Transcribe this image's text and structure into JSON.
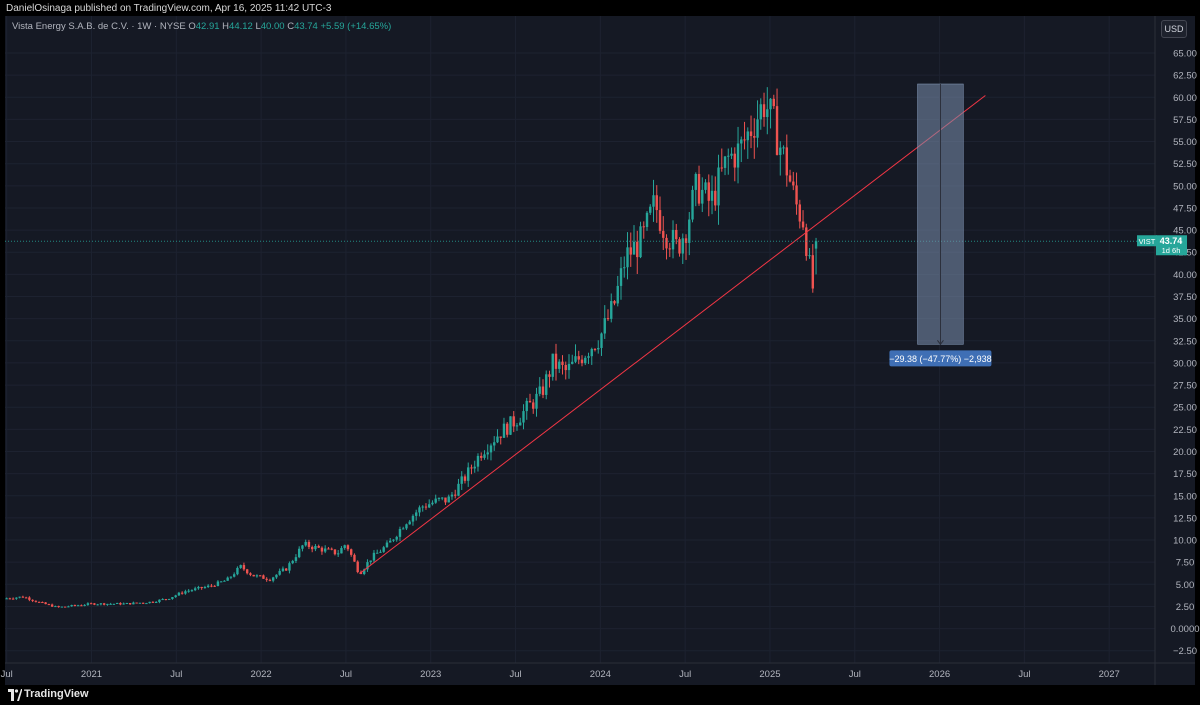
{
  "header": {
    "publish_line": "DanielOsinaga published on TradingView.com, Apr 16, 2025 11:42 UTC-3"
  },
  "legend": {
    "symbol": "Vista Energy S.A.B. de C.V. · 1W · NYSE",
    "o_label": "O",
    "o": "42.91",
    "h_label": "H",
    "h": "44.12",
    "l_label": "L",
    "l": "40.00",
    "c_label": "C",
    "c": "43.74",
    "change": "+5.59 (+14.65%)"
  },
  "currency_button": "USD",
  "price_tag": {
    "symbol": "VIST",
    "price": "43.74",
    "countdown": "1d 6h"
  },
  "measure_label": "−29.38 (−47.77%) −2,938",
  "footer": {
    "brand": "TradingView"
  },
  "colors": {
    "up": "#26a69a",
    "down": "#ef5350",
    "trendline": "#f23645",
    "measure_fill": "#7b8fae",
    "measure_label_bg": "#3f6fb5",
    "background": "#151924"
  },
  "chart_data": {
    "type": "candlestick",
    "timeframe": "1W",
    "y_axis": {
      "ticks": [
        "65.00",
        "62.50",
        "60.00",
        "57.50",
        "55.00",
        "52.50",
        "50.00",
        "47.50",
        "45.00",
        "42.50",
        "40.00",
        "37.50",
        "35.00",
        "32.50",
        "30.00",
        "27.50",
        "25.00",
        "22.50",
        "20.00",
        "17.50",
        "15.00",
        "12.50",
        "10.00",
        "7.50",
        "5.00",
        "2.50",
        "0.0000",
        "−2.50"
      ],
      "range": [
        -2.5,
        65
      ]
    },
    "x_axis": {
      "labels": [
        {
          "t": 2020.5,
          "text": "Jul"
        },
        {
          "t": 2021.0,
          "text": "2021"
        },
        {
          "t": 2021.5,
          "text": "Jul"
        },
        {
          "t": 2022.0,
          "text": "2022"
        },
        {
          "t": 2022.5,
          "text": "Jul"
        },
        {
          "t": 2023.0,
          "text": "2023"
        },
        {
          "t": 2023.5,
          "text": "Jul"
        },
        {
          "t": 2024.0,
          "text": "2024"
        },
        {
          "t": 2024.5,
          "text": "Jul"
        },
        {
          "t": 2025.0,
          "text": "2025"
        },
        {
          "t": 2025.5,
          "text": "Jul"
        },
        {
          "t": 2026.0,
          "text": "2026"
        },
        {
          "t": 2026.5,
          "text": "Jul"
        },
        {
          "t": 2027.0,
          "text": "2027"
        }
      ],
      "range": [
        2020.49,
        2027.27
      ]
    },
    "price_path": [
      [
        2020.49,
        3.4
      ],
      [
        2020.6,
        3.6
      ],
      [
        2020.7,
        2.9
      ],
      [
        2020.8,
        2.4
      ],
      [
        2020.9,
        2.6
      ],
      [
        2021.0,
        2.8
      ],
      [
        2021.2,
        2.8
      ],
      [
        2021.35,
        3.0
      ],
      [
        2021.45,
        3.4
      ],
      [
        2021.55,
        4.2
      ],
      [
        2021.7,
        4.8
      ],
      [
        2021.8,
        5.5
      ],
      [
        2021.88,
        7.0
      ],
      [
        2021.95,
        6.0
      ],
      [
        2022.05,
        5.6
      ],
      [
        2022.15,
        6.8
      ],
      [
        2022.25,
        9.5
      ],
      [
        2022.35,
        9.0
      ],
      [
        2022.45,
        8.5
      ],
      [
        2022.5,
        9.6
      ],
      [
        2022.58,
        6.2
      ],
      [
        2022.65,
        8.0
      ],
      [
        2022.75,
        9.5
      ],
      [
        2022.85,
        12.0
      ],
      [
        2022.95,
        13.8
      ],
      [
        2023.05,
        14.5
      ],
      [
        2023.1,
        14.5
      ],
      [
        2023.2,
        17.0
      ],
      [
        2023.3,
        20.0
      ],
      [
        2023.4,
        22.0
      ],
      [
        2023.5,
        23.5
      ],
      [
        2023.6,
        25.5
      ],
      [
        2023.65,
        26.5
      ],
      [
        2023.72,
        30.0
      ],
      [
        2023.8,
        29.0
      ],
      [
        2023.9,
        31.0
      ],
      [
        2024.0,
        33.0
      ],
      [
        2024.08,
        36.5
      ],
      [
        2024.15,
        42.0
      ],
      [
        2024.25,
        44.0
      ],
      [
        2024.32,
        48.0
      ],
      [
        2024.38,
        45.0
      ],
      [
        2024.45,
        43.0
      ],
      [
        2024.5,
        45.0
      ],
      [
        2024.57,
        50.0
      ],
      [
        2024.65,
        48.0
      ],
      [
        2024.75,
        53.0
      ],
      [
        2024.82,
        54.0
      ],
      [
        2024.9,
        57.0
      ],
      [
        2024.97,
        59.5
      ],
      [
        2025.02,
        57.0
      ],
      [
        2025.1,
        52.0
      ],
      [
        2025.15,
        48.0
      ],
      [
        2025.2,
        46.0
      ],
      [
        2025.25,
        38.0
      ],
      [
        2025.28,
        43.74
      ]
    ],
    "last_close": 43.74,
    "trendline": {
      "from": [
        2022.58,
        6.2
      ],
      "to": [
        2026.27,
        60.2
      ]
    },
    "measure_box": {
      "t_start": 2025.87,
      "t_end": 2026.14,
      "price_high": 61.5,
      "price_low": 32.1,
      "change": -29.38,
      "change_pct": -47.77,
      "ticks": -2938
    }
  }
}
